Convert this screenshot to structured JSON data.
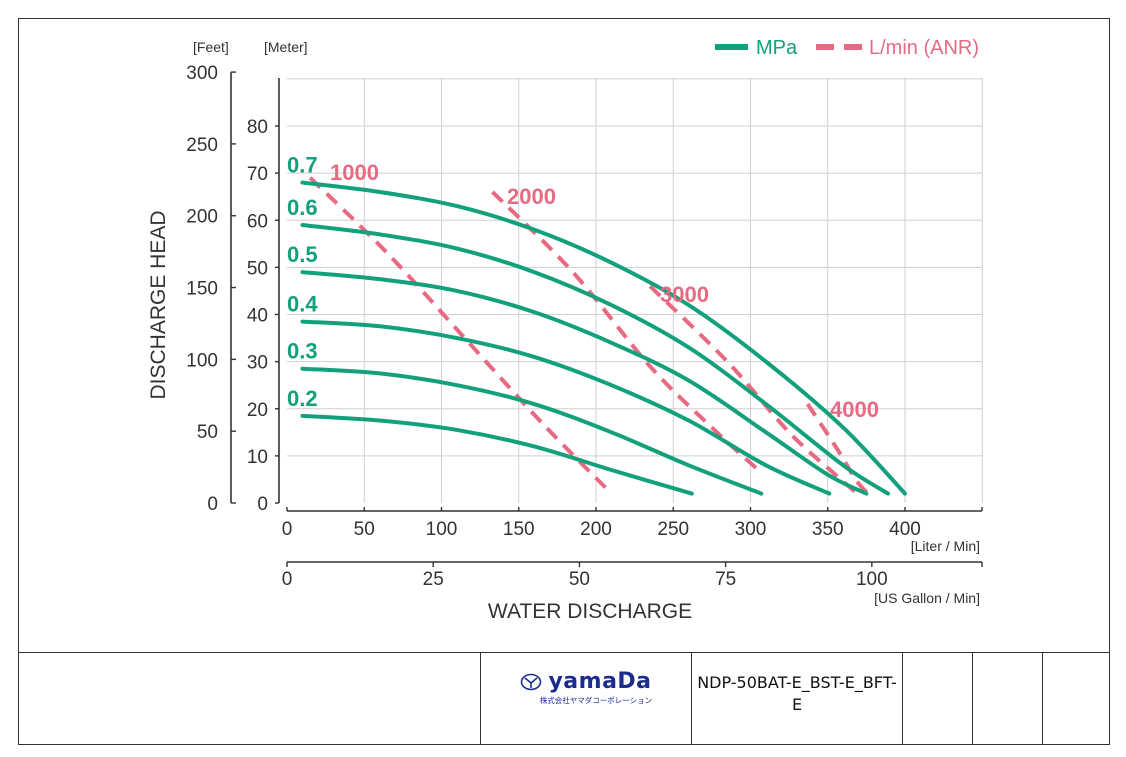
{
  "chart_data": {
    "type": "line",
    "ylabel": "DISCHARGE HEAD",
    "xlabel": "WATER DISCHARGE",
    "y_unit_feet": "[Feet]",
    "y_unit_meter": "[Meter]",
    "x_unit_liter": "[Liter / Min]",
    "x_unit_gallon": "[US Gallon / Min]",
    "feet_ticks": [
      "0",
      "50",
      "100",
      "150",
      "200",
      "250",
      "300"
    ],
    "meter_ticks": [
      "0",
      "10",
      "20",
      "30",
      "40",
      "50",
      "60",
      "70",
      "80"
    ],
    "liter_ticks": [
      "0",
      "50",
      "100",
      "150",
      "200",
      "250",
      "300",
      "350",
      "400"
    ],
    "gallon_ticks": [
      "0",
      "25",
      "50",
      "75",
      "100"
    ],
    "xlim_liter": [
      0,
      450
    ],
    "ylim_meter": [
      0,
      90
    ],
    "grid": true,
    "legend_position": "top-right",
    "legend": [
      {
        "label": "MPa",
        "style": "solid",
        "color": "#13a07c"
      },
      {
        "label": "L/min (ANR)",
        "style": "dashed",
        "color": "#e86a82"
      }
    ],
    "pressure_series": [
      {
        "name": "0.7",
        "x": [
          10,
          60,
          110,
          160,
          210,
          260,
          310,
          360,
          400
        ],
        "y": [
          68,
          66,
          63,
          58,
          51,
          42,
          30,
          16,
          2
        ]
      },
      {
        "name": "0.6",
        "x": [
          10,
          60,
          110,
          160,
          210,
          260,
          310,
          360,
          389
        ],
        "y": [
          59,
          57,
          54,
          49,
          42,
          33,
          21,
          8,
          2
        ]
      },
      {
        "name": "0.5",
        "x": [
          10,
          60,
          110,
          160,
          210,
          260,
          310,
          350,
          375
        ],
        "y": [
          49,
          47.5,
          45,
          40.5,
          34,
          26,
          15,
          6,
          2
        ]
      },
      {
        "name": "0.4",
        "x": [
          10,
          60,
          110,
          160,
          210,
          260,
          310,
          351
        ],
        "y": [
          38.5,
          37.5,
          35,
          31,
          25,
          17.5,
          8,
          2
        ]
      },
      {
        "name": "0.3",
        "x": [
          10,
          60,
          110,
          160,
          210,
          260,
          307
        ],
        "y": [
          28.5,
          27.5,
          25,
          21,
          15,
          8,
          2
        ]
      },
      {
        "name": "0.2",
        "x": [
          10,
          60,
          110,
          160,
          210,
          262
        ],
        "y": [
          18.5,
          17.5,
          15.5,
          12,
          7,
          2
        ]
      }
    ],
    "air_series": [
      {
        "name": "1000",
        "x": [
          15,
          65,
          115,
          165,
          210
        ],
        "y": [
          69,
          53,
          35,
          17,
          2
        ]
      },
      {
        "name": "2000",
        "x": [
          133,
          185,
          235,
          275,
          305
        ],
        "y": [
          66,
          49,
          29,
          16,
          7
        ]
      },
      {
        "name": "3000",
        "x": [
          235,
          285,
          325,
          355,
          369
        ],
        "y": [
          46,
          30,
          15,
          6,
          2
        ]
      },
      {
        "name": "4000",
        "x": [
          337,
          357,
          368,
          376
        ],
        "y": [
          21,
          11,
          5,
          2
        ]
      }
    ]
  },
  "footer": {
    "logo_text": "yamaDa",
    "logo_subtext": "株式会社ヤマダコーポレーション",
    "model": "NDP-50BAT-E_BST-E_BFT-E",
    "extra_cells": [
      "",
      "",
      ""
    ]
  }
}
